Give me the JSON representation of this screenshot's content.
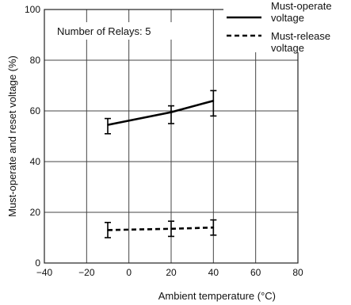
{
  "chart_data": {
    "type": "line",
    "title": "",
    "annotation": "Number of Relays: 5",
    "xlabel": "Ambient temperature (°C)",
    "ylabel": "Must-operate and reset voltage (%)",
    "xlim": [
      -40,
      80
    ],
    "ylim": [
      0,
      100
    ],
    "x_ticks": [
      -40,
      -20,
      0,
      20,
      40,
      60,
      80
    ],
    "x_tick_labels": [
      "−40",
      "−20",
      "0",
      "20",
      "40",
      "60",
      "80"
    ],
    "y_ticks": [
      0,
      20,
      40,
      60,
      80,
      100
    ],
    "y_tick_labels": [
      "0",
      "20",
      "40",
      "60",
      "80",
      "100"
    ],
    "grid": true,
    "legend_position": "top-right",
    "series": [
      {
        "name": "Must-operate voltage",
        "line_style": "solid",
        "x": [
          -10,
          20,
          40
        ],
        "y": [
          54.5,
          59.5,
          64
        ],
        "y_min": [
          51,
          55,
          58
        ],
        "y_max": [
          57,
          62,
          68
        ]
      },
      {
        "name": "Must-release voltage",
        "line_style": "dashed",
        "x": [
          -10,
          20,
          40
        ],
        "y": [
          13,
          13.5,
          14
        ],
        "y_min": [
          10,
          10.5,
          11
        ],
        "y_max": [
          16,
          16.5,
          17
        ]
      }
    ]
  },
  "legend": {
    "line1_label": "Must-operate",
    "line1_label_2": "voltage",
    "line2_label": "Must-release",
    "line2_label_2": "voltage"
  }
}
